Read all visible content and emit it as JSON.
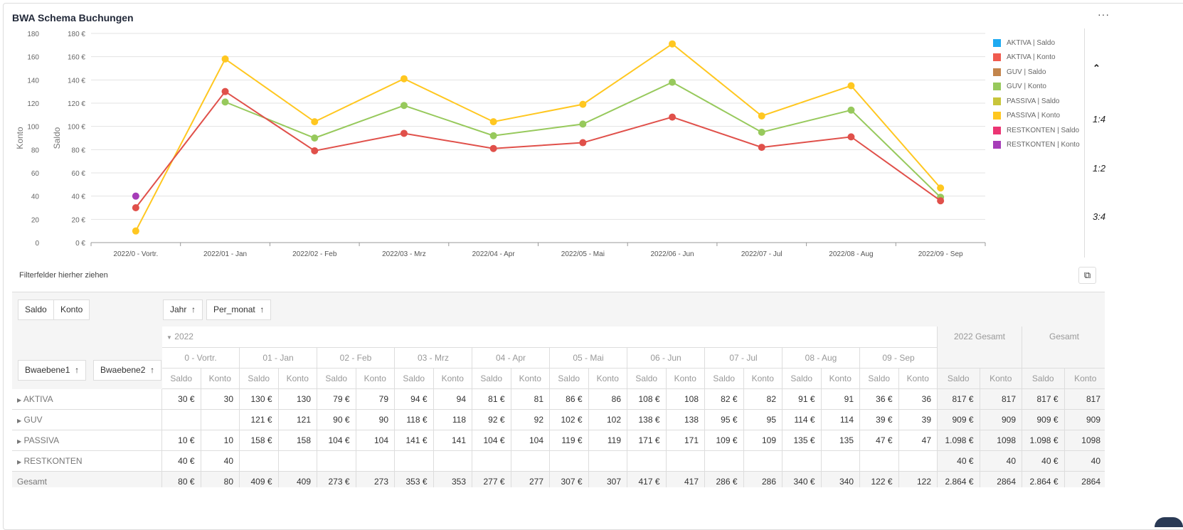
{
  "widget": {
    "title": "BWA Schema Buchungen",
    "more_label": "···"
  },
  "chart_data": {
    "type": "line",
    "categories": [
      "2022/0 - Vortr.",
      "2022/01 - Jan",
      "2022/02 - Feb",
      "2022/03 - Mrz",
      "2022/04 - Apr",
      "2022/05 - Mai",
      "2022/06 - Jun",
      "2022/07 - Jul",
      "2022/08 - Aug",
      "2022/09 - Sep"
    ],
    "y_left_label": "Konto",
    "y_right_label": "Saldo",
    "ylim": [
      0,
      180
    ],
    "yticks_left": [
      "0",
      "20",
      "40",
      "60",
      "80",
      "100",
      "120",
      "140",
      "160",
      "180"
    ],
    "yticks_right": [
      "0 €",
      "20 €",
      "40 €",
      "60 €",
      "80 €",
      "100 €",
      "120 €",
      "140 €",
      "160 €",
      "180 €"
    ],
    "grid": true,
    "legend_position": "right",
    "legend": [
      {
        "name": "AKTIVA | Saldo",
        "color": "#1eaaf1"
      },
      {
        "name": "AKTIVA | Konto",
        "color": "#f05b4f"
      },
      {
        "name": "GUV | Saldo",
        "color": "#c3854c"
      },
      {
        "name": "GUV | Konto",
        "color": "#97c95c"
      },
      {
        "name": "PASSIVA | Saldo",
        "color": "#c8c53b"
      },
      {
        "name": "PASSIVA | Konto",
        "color": "#ffc720"
      },
      {
        "name": "RESTKONTEN | Saldo",
        "color": "#eb3573"
      },
      {
        "name": "RESTKONTEN | Konto",
        "color": "#a63db8"
      }
    ],
    "series": [
      {
        "name": "PASSIVA | Konto",
        "color": "#ffc720",
        "values": [
          10,
          158,
          104,
          141,
          104,
          119,
          171,
          109,
          135,
          47
        ]
      },
      {
        "name": "GUV | Konto",
        "color": "#97c95c",
        "values": [
          null,
          121,
          90,
          118,
          92,
          102,
          138,
          95,
          114,
          39
        ]
      },
      {
        "name": "AKTIVA | Konto",
        "color": "#e0504a",
        "values": [
          30,
          130,
          79,
          94,
          81,
          86,
          108,
          82,
          91,
          36
        ]
      },
      {
        "name": "RESTKONTEN | Konto",
        "color": "#a63db8",
        "values": [
          40,
          null,
          null,
          null,
          null,
          null,
          null,
          null,
          null,
          null
        ]
      }
    ]
  },
  "side": {
    "collapse_icon": "double-chevron-up",
    "ratios": [
      "1:4",
      "1:2",
      "3:4"
    ]
  },
  "filter_area": {
    "label": "Filterfelder hierher ziehen",
    "toggle_icon": "field-chooser-icon"
  },
  "pivot": {
    "data_fields": [
      "Saldo",
      "Konto"
    ],
    "column_fields": [
      "Jahr",
      "Per_monat"
    ],
    "row_fields": [
      "Bwaebene1",
      "Bwaebene2"
    ],
    "year": "2022",
    "months": [
      "0 - Vortr.",
      "01 - Jan",
      "02 - Feb",
      "03 - Mrz",
      "04 - Apr",
      "05 - Mai",
      "06 - Jun",
      "07 - Jul",
      "08 - Aug",
      "09 - Sep"
    ],
    "totals": [
      "2022 Gesamt",
      "Gesamt"
    ],
    "measures": [
      "Saldo",
      "Konto"
    ],
    "rows": [
      {
        "label": "AKTIVA",
        "expandable": true,
        "cells": [
          "30 €",
          "30",
          "130 €",
          "130",
          "79 €",
          "79",
          "94 €",
          "94",
          "81 €",
          "81",
          "86 €",
          "86",
          "108 €",
          "108",
          "82 €",
          "82",
          "91 €",
          "91",
          "36 €",
          "36",
          "817 €",
          "817",
          "817 €",
          "817"
        ]
      },
      {
        "label": "GUV",
        "expandable": true,
        "cells": [
          "",
          "",
          "121 €",
          "121",
          "90 €",
          "90",
          "118 €",
          "118",
          "92 €",
          "92",
          "102 €",
          "102",
          "138 €",
          "138",
          "95 €",
          "95",
          "114 €",
          "114",
          "39 €",
          "39",
          "909 €",
          "909",
          "909 €",
          "909"
        ]
      },
      {
        "label": "PASSIVA",
        "expandable": true,
        "cells": [
          "10 €",
          "10",
          "158 €",
          "158",
          "104 €",
          "104",
          "141 €",
          "141",
          "104 €",
          "104",
          "119 €",
          "119",
          "171 €",
          "171",
          "109 €",
          "109",
          "135 €",
          "135",
          "47 €",
          "47",
          "1.098 €",
          "1098",
          "1.098 €",
          "1098"
        ]
      },
      {
        "label": "RESTKONTEN",
        "expandable": true,
        "cells": [
          "40 €",
          "40",
          "",
          "",
          "",
          "",
          "",
          "",
          "",
          "",
          "",
          "",
          "",
          "",
          "",
          "",
          "",
          "",
          "",
          "",
          "40 €",
          "40",
          "40 €",
          "40"
        ]
      },
      {
        "label": "Gesamt",
        "expandable": false,
        "cells": [
          "80 €",
          "80",
          "409 €",
          "409",
          "273 €",
          "273",
          "353 €",
          "353",
          "277 €",
          "277",
          "307 €",
          "307",
          "417 €",
          "417",
          "286 €",
          "286",
          "340 €",
          "340",
          "122 €",
          "122",
          "2.864 €",
          "2864",
          "2.864 €",
          "2864"
        ]
      }
    ]
  }
}
